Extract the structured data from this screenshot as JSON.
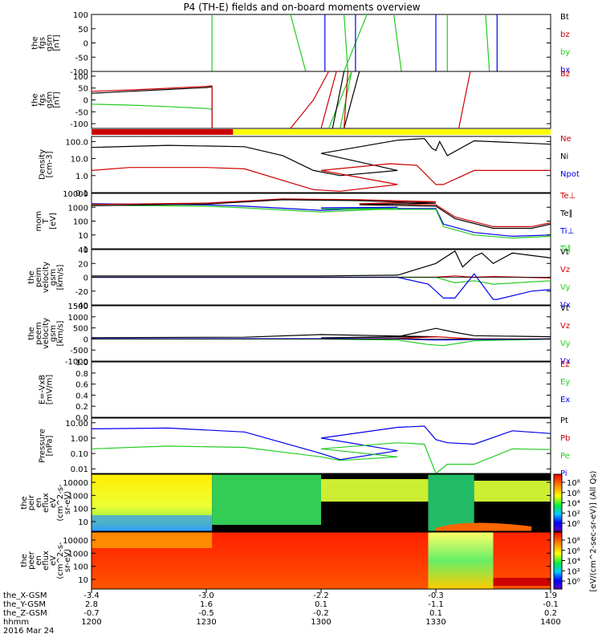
{
  "title": "P4 (TH-E) fields and on-board moments overview",
  "colors": {
    "black": "#000000",
    "red": "#cc0000",
    "green": "#22cc22",
    "blue": "#0000ee",
    "yellow": "#ffff00"
  },
  "chart_data": [
    {
      "id": "fgs",
      "type": "line",
      "ylabel": [
        "the",
        "fgs",
        "gsm",
        "[nT]"
      ],
      "yticks": [
        "100",
        "50",
        "0",
        "-50",
        "-100"
      ],
      "ylim": [
        -100,
        100
      ],
      "legend": [
        {
          "text": "Bt",
          "color": "black"
        },
        {
          "text": "bz",
          "color": "red"
        },
        {
          "text": "by",
          "color": "green"
        },
        {
          "text": "bx",
          "color": "blue"
        }
      ],
      "series": [
        {
          "color": "green",
          "x": [
            1231.5,
            1231.5
          ],
          "y": [
            -100,
            100
          ]
        },
        {
          "color": "green",
          "x": [
            1252,
            1256
          ],
          "y": [
            100,
            -100
          ]
        },
        {
          "color": "green",
          "x": [
            1266,
            1272
          ],
          "y": [
            -100,
            100
          ]
        },
        {
          "color": "blue",
          "x": [
            1269,
            1269
          ],
          "y": [
            -100,
            100
          ]
        },
        {
          "color": "green",
          "x": [
            1279,
            1281
          ],
          "y": [
            100,
            -100
          ]
        },
        {
          "color": "blue",
          "x": [
            1301,
            1301
          ],
          "y": [
            -100,
            100
          ]
        },
        {
          "color": "green",
          "x": [
            1306,
            1307
          ],
          "y": [
            100,
            -100
          ]
        },
        {
          "color": "blue",
          "x": [
            1330,
            1330
          ],
          "y": [
            -100,
            100
          ]
        },
        {
          "color": "green",
          "x": [
            1333,
            1333
          ],
          "y": [
            -100,
            100
          ]
        },
        {
          "color": "green",
          "x": [
            1343,
            1344
          ],
          "y": [
            100,
            -100
          ]
        },
        {
          "color": "blue",
          "x": [
            1346,
            1346
          ],
          "y": [
            -100,
            100
          ]
        },
        {
          "color": "green",
          "x": [
            1385,
            1392
          ],
          "y": [
            100,
            -100
          ]
        }
      ]
    },
    {
      "id": "fgs-total",
      "type": "line",
      "ylabel": [
        "the",
        "fgs",
        "gsm",
        "[nT]"
      ],
      "yticks": [
        "100",
        "50",
        "0",
        "-50",
        "-100"
      ],
      "ylim": [
        -120,
        120
      ],
      "legend": [
        {
          "text": "Bz",
          "color": "red"
        }
      ],
      "series": [
        {
          "color": "red",
          "x": [
            1200,
            1210,
            1220,
            1230,
            1231.5
          ],
          "y": [
            36,
            42,
            49,
            57,
            60
          ]
        },
        {
          "color": "black",
          "x": [
            1200,
            1210,
            1220,
            1230,
            1231.5
          ],
          "y": [
            28,
            36,
            44,
            52,
            55
          ]
        },
        {
          "color": "green",
          "x": [
            1200,
            1210,
            1220,
            1230,
            1231.5
          ],
          "y": [
            -18,
            -22,
            -28,
            -36,
            -40
          ]
        },
        {
          "color": "black",
          "x": [
            1231.5,
            1231.5
          ],
          "y": [
            55,
            -120
          ]
        },
        {
          "color": "red",
          "x": [
            1231.5,
            1231.5
          ],
          "y": [
            60,
            -120
          ]
        },
        {
          "color": "red",
          "x": [
            1252,
            1258,
            1262
          ],
          "y": [
            -120,
            0,
            120
          ]
        },
        {
          "color": "green",
          "x": [
            1262,
            1268
          ],
          "y": [
            -120,
            120
          ]
        },
        {
          "color": "black",
          "x": [
            1266,
            1270
          ],
          "y": [
            -120,
            120
          ]
        },
        {
          "color": "red",
          "x": [
            1300,
            1304
          ],
          "y": [
            -120,
            120
          ]
        },
        {
          "color": "black",
          "x": [
            1303,
            1306
          ],
          "y": [
            -120,
            120
          ]
        },
        {
          "color": "green",
          "x": [
            1305,
            1308
          ],
          "y": [
            -120,
            120
          ]
        },
        {
          "color": "red",
          "x": [
            1306,
            1307
          ],
          "y": [
            -120,
            120
          ]
        },
        {
          "color": "red",
          "x": [
            1336,
            1339
          ],
          "y": [
            -120,
            120
          ]
        }
      ]
    },
    {
      "id": "mode-bar",
      "type": "bar",
      "segments": [
        {
          "from": 1200,
          "to": 1237,
          "color": "red"
        },
        {
          "from": 1237,
          "to": 1400,
          "color": "yellow"
        }
      ]
    },
    {
      "id": "density",
      "type": "line",
      "log": true,
      "ylabel": [
        "Density",
        "[cm-3]"
      ],
      "yticks": [
        "100.0",
        "10.0",
        "1.0",
        "0.1"
      ],
      "ylim": [
        0.1,
        200
      ],
      "legend": [
        {
          "text": "Ne",
          "color": "red"
        },
        {
          "text": "Ni",
          "color": "black"
        },
        {
          "text": "Npot",
          "color": "blue"
        }
      ],
      "series": [
        {
          "color": "black",
          "x": [
            1200,
            1220,
            1240,
            1250,
            1258,
            1265,
            1280,
            1300,
            1320,
            1327,
            1329,
            1330,
            1331,
            1333,
            1340,
            1360,
            1380,
            1400
          ],
          "y": [
            45,
            60,
            50,
            15,
            2,
            1,
            2,
            20,
            120,
            150,
            40,
            30,
            100,
            15,
            110,
            70,
            50,
            40
          ]
        },
        {
          "color": "red",
          "x": [
            1200,
            1210,
            1230,
            1240,
            1258,
            1265,
            1280,
            1300,
            1318,
            1325,
            1330,
            1332,
            1340,
            1360,
            1380,
            1400
          ],
          "y": [
            2,
            3,
            3,
            2.5,
            0.15,
            0.12,
            0.3,
            2,
            5,
            4,
            0.3,
            0.3,
            2,
            2,
            1.8,
            1.6
          ]
        }
      ]
    },
    {
      "id": "temperature",
      "type": "line",
      "log": true,
      "ylabel": [
        "mom",
        "T",
        "[eV]"
      ],
      "yticks": [
        "10000",
        "1000",
        "100",
        "10",
        "1"
      ],
      "ylim": [
        1,
        10000
      ],
      "legend": [
        {
          "text": "Te⊥",
          "color": "red"
        },
        {
          "text": "Te∥",
          "color": "black"
        },
        {
          "text": "Ti⊥",
          "color": "blue"
        },
        {
          "text": "Ti∥",
          "color": "green"
        }
      ],
      "series": [
        {
          "color": "blue",
          "x": [
            1200,
            1230,
            1240,
            1260,
            1280,
            1300,
            1320,
            1330,
            1332,
            1340,
            1350,
            1360,
            1380,
            1400
          ],
          "y": [
            1800,
            1500,
            1200,
            600,
            1000,
            900,
            800,
            800,
            60,
            15,
            8,
            10,
            20,
            25
          ]
        },
        {
          "color": "green",
          "x": [
            1200,
            1230,
            1240,
            1260,
            1280,
            1300,
            1320,
            1330,
            1332,
            1340,
            1350,
            1360,
            1380,
            1400
          ],
          "y": [
            1400,
            1200,
            900,
            450,
            800,
            750,
            700,
            700,
            40,
            10,
            6,
            8,
            15,
            20
          ]
        },
        {
          "color": "red",
          "x": [
            1200,
            1230,
            1250,
            1270,
            1290,
            1310,
            1330,
            1335,
            1345,
            1355,
            1365,
            1380,
            1400
          ],
          "y": [
            1600,
            2000,
            4000,
            3500,
            2500,
            1800,
            1500,
            200,
            40,
            40,
            150,
            300,
            400
          ]
        },
        {
          "color": "black",
          "x": [
            1200,
            1230,
            1250,
            1270,
            1290,
            1310,
            1330,
            1335,
            1345,
            1355,
            1365,
            1380,
            1400
          ],
          "y": [
            1300,
            1700,
            3500,
            3000,
            2000,
            1500,
            1200,
            150,
            30,
            30,
            120,
            250,
            330
          ]
        }
      ]
    },
    {
      "id": "peim-velocity",
      "type": "line",
      "ylabel": [
        "the",
        "peim",
        "velocity",
        "gsm",
        "[km/s]"
      ],
      "yticks": [
        "40",
        "20",
        "0",
        "-20",
        "-40"
      ],
      "ylim": [
        -40,
        40
      ],
      "legend": [
        {
          "text": "Vt",
          "color": "black"
        },
        {
          "text": "Vz",
          "color": "red"
        },
        {
          "text": "Vy",
          "color": "green"
        },
        {
          "text": "Vx",
          "color": "blue"
        }
      ],
      "series": [
        {
          "color": "black",
          "x": [
            1200,
            1300,
            1320,
            1330,
            1335,
            1337,
            1340,
            1342,
            1345,
            1350,
            1360,
            1380,
            1400
          ],
          "y": [
            2,
            2,
            3,
            20,
            38,
            15,
            30,
            35,
            20,
            35,
            28,
            14,
            12
          ]
        },
        {
          "color": "red",
          "x": [
            1200,
            1330,
            1335,
            1340,
            1345,
            1400
          ],
          "y": [
            0,
            0,
            2,
            0,
            1,
            -1
          ]
        },
        {
          "color": "green",
          "x": [
            1200,
            1330,
            1335,
            1340,
            1345,
            1360,
            1400
          ],
          "y": [
            0,
            0,
            -8,
            -5,
            -10,
            -5,
            -3
          ]
        },
        {
          "color": "blue",
          "x": [
            1200,
            1320,
            1328,
            1332,
            1335,
            1340,
            1345,
            1346,
            1355,
            1380,
            1400
          ],
          "y": [
            0,
            0,
            -10,
            -30,
            -30,
            5,
            -32,
            -32,
            -20,
            -8,
            -5
          ]
        }
      ]
    },
    {
      "id": "peem-velocity",
      "type": "line",
      "ylabel": [
        "the",
        "peem",
        "velocity",
        "gsm",
        "[km/s]"
      ],
      "yticks": [
        "1500",
        "1000",
        "500",
        "0",
        "-500",
        "-1000"
      ],
      "ylim": [
        -1000,
        1500
      ],
      "legend": [
        {
          "text": "Vt",
          "color": "black"
        },
        {
          "text": "Vz",
          "color": "red"
        },
        {
          "text": "Vy",
          "color": "green"
        },
        {
          "text": "Vx",
          "color": "blue"
        }
      ],
      "series": [
        {
          "color": "black",
          "x": [
            1200,
            1240,
            1260,
            1290,
            1300,
            1320,
            1330,
            1335,
            1340,
            1400
          ],
          "y": [
            60,
            80,
            200,
            100,
            50,
            100,
            480,
            300,
            150,
            100
          ]
        },
        {
          "color": "red",
          "x": [
            1200,
            1300,
            1320,
            1330,
            1340,
            1400
          ],
          "y": [
            0,
            0,
            20,
            100,
            0,
            0
          ]
        },
        {
          "color": "green",
          "x": [
            1200,
            1300,
            1320,
            1328,
            1332,
            1340,
            1400
          ],
          "y": [
            0,
            0,
            -50,
            -250,
            -300,
            -80,
            -10
          ]
        },
        {
          "color": "blue",
          "x": [
            1200,
            1300,
            1320,
            1330,
            1340,
            1400
          ],
          "y": [
            10,
            10,
            0,
            -50,
            -20,
            0
          ]
        }
      ]
    },
    {
      "id": "efield",
      "type": "line",
      "ylabel": [
        "E=-VxB",
        "[mV/m]"
      ],
      "yticks": [
        "1.0",
        "0.8",
        "0.6",
        "0.4",
        "0.2",
        "0.0"
      ],
      "ylim": [
        0,
        1
      ],
      "legend": [
        {
          "text": "Ez",
          "color": "red"
        },
        {
          "text": "Ey",
          "color": "green"
        },
        {
          "text": "Ex",
          "color": "blue"
        }
      ],
      "series": []
    },
    {
      "id": "pressure",
      "type": "line",
      "log": true,
      "ylabel": [
        "Pressure",
        "[nPa]"
      ],
      "yticks": [
        "10.00",
        "1.00",
        "0.10",
        "0.01"
      ],
      "ylim": [
        0.005,
        20
      ],
      "legend": [
        {
          "text": "Pt",
          "color": "black"
        },
        {
          "text": "Pb",
          "color": "red"
        },
        {
          "text": "Pe",
          "color": "green"
        },
        {
          "text": "Pi",
          "color": "blue"
        }
      ],
      "series": [
        {
          "color": "blue",
          "x": [
            1200,
            1220,
            1240,
            1260,
            1265,
            1280,
            1300,
            1320,
            1327,
            1330,
            1333,
            1340,
            1350,
            1360,
            1380,
            1400
          ],
          "y": [
            4,
            4.5,
            2.5,
            0.1,
            0.04,
            0.15,
            1,
            5,
            6,
            0.8,
            0.5,
            0.4,
            3,
            2,
            1.5,
            1
          ]
        },
        {
          "color": "green",
          "x": [
            1200,
            1220,
            1240,
            1260,
            1265,
            1280,
            1300,
            1320,
            1327,
            1330,
            1333,
            1340,
            1350,
            1360,
            1380,
            1400
          ],
          "y": [
            0.2,
            0.3,
            0.25,
            0.06,
            0.035,
            0.06,
            0.2,
            0.5,
            0.4,
            0.005,
            0.02,
            0.02,
            0.2,
            0.18,
            0.15,
            0.13
          ]
        }
      ]
    },
    {
      "id": "peir-eflux",
      "type": "heatmap",
      "ylabel": [
        "the",
        "peir",
        "en",
        "eflux",
        "eV",
        "(cm^2-s-",
        "sr-eV)"
      ],
      "yticks": [
        "10000",
        "1000",
        "100",
        "10"
      ]
    },
    {
      "id": "peer-eflux",
      "type": "heatmap",
      "ylabel": [
        "the",
        "peer",
        "en",
        "eflux",
        "eV",
        "(cm^2-s-",
        "sr-eV)"
      ],
      "yticks": [
        "10000",
        "1000",
        "100",
        "10"
      ]
    }
  ],
  "colorbar": {
    "upper_ticks": [
      "10⁸",
      "10⁶",
      "10⁴",
      "10²",
      "10⁰"
    ],
    "lower_ticks": [
      "10⁸",
      "10⁶",
      "10⁴",
      "10²",
      "10⁰"
    ],
    "label": "[eV/(cm^2-sec-sr-eV)] (All Qs)"
  },
  "xaxis": {
    "x_range": [
      1200,
      1400
    ],
    "tick_times": [
      1200,
      1230,
      1300,
      1330,
      1400
    ],
    "rows": [
      {
        "label": "the_X-GSM",
        "values": [
          "-3.4",
          "-3.0",
          "-2.2",
          "-0.3",
          "1.9"
        ]
      },
      {
        "label": "the_Y-GSM",
        "values": [
          "2.8",
          "1.6",
          "0.1",
          "-1.1",
          "-0.1"
        ]
      },
      {
        "label": "the_Z-GSM",
        "values": [
          "-0.7",
          "-0.5",
          "-0.2",
          "0.1",
          "0.2"
        ]
      },
      {
        "label": "hhmm",
        "values": [
          "1200",
          "1230",
          "1300",
          "1330",
          "1400"
        ]
      }
    ],
    "date": "2016 Mar 24"
  }
}
